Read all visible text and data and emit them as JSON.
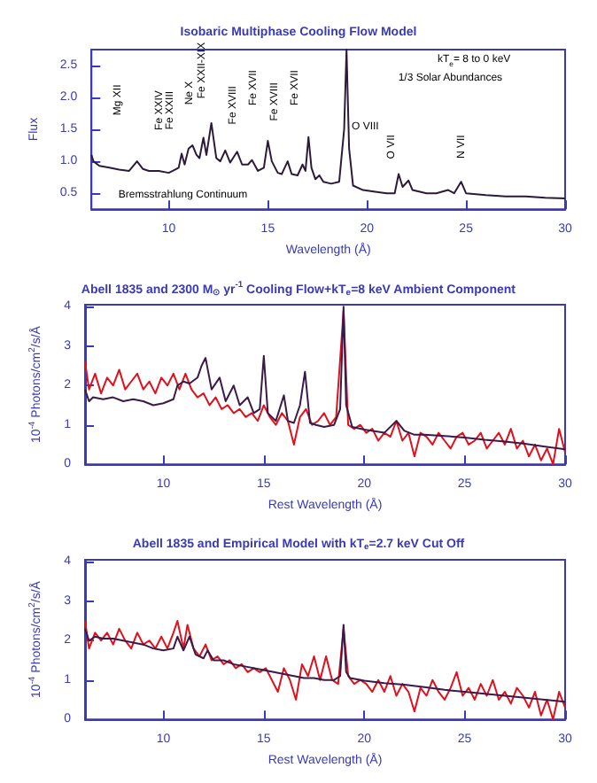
{
  "chart_data": [
    {
      "type": "line",
      "title": "Isobaric Multiphase Cooling Flow Model",
      "xlabel": "Wavelength (Å)",
      "ylabel": "Flux",
      "xlim": [
        6.1,
        30
      ],
      "ylim": [
        0.25,
        2.75
      ],
      "xticks": [
        10,
        15,
        20,
        25,
        30
      ],
      "yticks": [
        {
          "value": 0.5,
          "label": "0.5"
        },
        {
          "value": 1,
          "label": "1.0"
        },
        {
          "value": 1.5,
          "label": "1.5"
        },
        {
          "value": 2,
          "label": "2.0"
        },
        {
          "value": 2.5,
          "label": "2.5"
        }
      ],
      "grid": false,
      "marker": "none",
      "line_style": "solid",
      "annotations": [
        "kT$_{e}$= 8 to 0 keV",
        "1/3 Solar Abundances",
        "Mg XII",
        "Fe XXIV",
        "Fe XXIII",
        "Ne X",
        "Fe XXII-XIX",
        "Fe XVIII",
        "Fe XVII",
        "Fe XVIII",
        "Fe XVII",
        "O VIII",
        "O VII",
        "N VII",
        "Bremsstrahlung Continuum"
      ],
      "series": [
        {
          "color": "#2c1a3a",
          "x": [
            6.1,
            6.2,
            6.5,
            7,
            7.5,
            8,
            8.4,
            8.7,
            9,
            9.5,
            10,
            10.2,
            10.5,
            10.65,
            10.8,
            11,
            11.2,
            11.4,
            11.55,
            11.75,
            11.9,
            12.15,
            12.4,
            12.6,
            12.85,
            13.1,
            13.45,
            13.7,
            14.0,
            14.2,
            14.5,
            14.8,
            15.0,
            15.2,
            15.5,
            15.7,
            16.0,
            16.2,
            16.5,
            16.75,
            16.9,
            17.05,
            17.2,
            17.4,
            17.6,
            17.8,
            18.2,
            18.6,
            18.85,
            18.97,
            19.1,
            19.3,
            19.8,
            20.5,
            21,
            21.4,
            21.6,
            21.8,
            22.1,
            22.3,
            23,
            23.5,
            24.1,
            24.4,
            24.75,
            25,
            26,
            27,
            28,
            29,
            30
          ],
          "values": [
            1.1,
            1.0,
            0.93,
            0.9,
            0.87,
            0.85,
            1.0,
            0.88,
            0.85,
            0.85,
            0.82,
            0.85,
            0.9,
            1.12,
            0.95,
            1.2,
            1.25,
            1.1,
            1.05,
            1.37,
            1.1,
            1.6,
            1.05,
            1.0,
            1.17,
            0.98,
            1.15,
            0.95,
            0.95,
            1.02,
            0.85,
            0.9,
            1.32,
            1.0,
            0.82,
            0.8,
            1.0,
            0.8,
            0.78,
            0.95,
            0.85,
            1.38,
            0.9,
            0.72,
            0.78,
            0.68,
            0.65,
            0.68,
            1.5,
            2.75,
            1.2,
            0.62,
            0.55,
            0.52,
            0.5,
            0.5,
            0.8,
            0.6,
            0.7,
            0.55,
            0.5,
            0.5,
            0.55,
            0.5,
            0.68,
            0.5,
            0.47,
            0.45,
            0.45,
            0.43,
            0.42
          ]
        }
      ]
    },
    {
      "type": "line",
      "title": "Abell 1835 and 2300 M$_{⊙}$ yr$^{-1}$ Cooling Flow+kT$_{e}$=8 keV Ambient Component",
      "xlabel": "Rest Wavelength (Å)",
      "ylabel": "10$^{-4}$ Photons/cm$^{2}$/s/Å",
      "xlim": [
        6.1,
        30
      ],
      "ylim": [
        0,
        4.05
      ],
      "xticks": [
        10,
        15,
        20,
        25,
        30
      ],
      "yticks": [
        0,
        1,
        2,
        3,
        4
      ],
      "grid": false,
      "marker": "none",
      "line_style": "solid",
      "series": [
        {
          "color": "#e0101c",
          "x": [
            6.1,
            6.3,
            6.6,
            6.9,
            7.2,
            7.5,
            7.8,
            8.1,
            8.4,
            8.7,
            9.0,
            9.3,
            9.6,
            9.9,
            10.2,
            10.5,
            10.8,
            11.1,
            11.4,
            11.7,
            12.0,
            12.3,
            12.6,
            12.9,
            13.2,
            13.5,
            13.8,
            14.1,
            14.4,
            14.7,
            15.0,
            15.3,
            15.6,
            15.9,
            16.2,
            16.5,
            16.8,
            17.1,
            17.4,
            17.7,
            18.0,
            18.3,
            18.6,
            18.97,
            19.2,
            19.5,
            19.8,
            20.1,
            20.4,
            20.7,
            21.0,
            21.3,
            21.6,
            21.9,
            22.2,
            22.5,
            22.8,
            23.1,
            23.4,
            23.7,
            24.0,
            24.3,
            24.6,
            24.9,
            25.2,
            25.5,
            25.8,
            26.1,
            26.4,
            26.7,
            27.0,
            27.3,
            27.6,
            27.9,
            28.2,
            28.5,
            28.8,
            29.1,
            29.4,
            29.7,
            30
          ],
          "values": [
            2.6,
            1.9,
            2.3,
            1.8,
            2.2,
            2.0,
            2.4,
            1.9,
            2.1,
            2.3,
            1.9,
            2.1,
            1.8,
            2.2,
            2.0,
            2.3,
            1.9,
            2.3,
            1.9,
            1.7,
            1.8,
            1.5,
            1.7,
            1.4,
            1.5,
            1.3,
            1.4,
            1.2,
            1.3,
            1.1,
            1.5,
            1.2,
            1.0,
            1.3,
            1.1,
            0.5,
            1.2,
            1.4,
            1.0,
            1.1,
            1.3,
            1.0,
            1.2,
            3.9,
            1.0,
            0.9,
            1.0,
            0.8,
            0.9,
            0.6,
            0.8,
            0.7,
            1.1,
            0.6,
            0.8,
            0.2,
            0.8,
            0.7,
            0.5,
            0.8,
            0.6,
            0.4,
            0.7,
            0.8,
            0.5,
            0.6,
            0.8,
            0.4,
            0.6,
            0.8,
            0.5,
            0.9,
            0.4,
            0.6,
            0.2,
            0.5,
            0.1,
            0.4,
            0.0,
            0.9,
            0.3
          ]
        },
        {
          "color": "#3b1a4a",
          "x": [
            6.1,
            6.3,
            6.5,
            7,
            7.5,
            8,
            8.5,
            9,
            9.5,
            10,
            10.5,
            10.7,
            11,
            11.3,
            11.7,
            11.9,
            12.1,
            12.4,
            12.8,
            13.1,
            13.5,
            13.8,
            14.2,
            14.5,
            14.8,
            15.0,
            15.2,
            15.6,
            16.0,
            16.2,
            16.5,
            16.8,
            17.05,
            17.3,
            17.6,
            18,
            18.5,
            18.8,
            18.97,
            19.1,
            19.4,
            20,
            21,
            21.6,
            22,
            22.5,
            23,
            24,
            25,
            26,
            27,
            28,
            29,
            30
          ],
          "values": [
            1.9,
            1.6,
            1.7,
            1.65,
            1.7,
            1.6,
            1.65,
            1.6,
            1.5,
            1.55,
            1.65,
            2.0,
            2.1,
            2.05,
            2.2,
            2.5,
            2.7,
            1.9,
            2.2,
            1.6,
            2.0,
            1.5,
            1.7,
            1.3,
            1.4,
            2.75,
            1.3,
            1.1,
            1.75,
            1.1,
            1.05,
            1.5,
            2.35,
            1.05,
            1.0,
            0.95,
            1.0,
            1.4,
            4.0,
            1.5,
            0.95,
            0.88,
            0.8,
            1.1,
            0.85,
            0.75,
            0.75,
            0.72,
            0.68,
            0.62,
            0.58,
            0.52,
            0.45,
            0.38
          ]
        }
      ]
    },
    {
      "type": "line",
      "title": "Abell 1835 and Empirical Model with kT$_{e}$=2.7 keV Cut Off",
      "xlabel": "Rest Wavelength (Å)",
      "ylabel": "10$^{-4}$ Photons/cm$^{2}$/s/Å",
      "xlim": [
        6.1,
        30
      ],
      "ylim": [
        0,
        4.05
      ],
      "xticks": [
        10,
        15,
        20,
        25,
        30
      ],
      "yticks": [
        0,
        1,
        2,
        3,
        4
      ],
      "grid": false,
      "marker": "none",
      "line_style": "solid",
      "series": [
        {
          "color": "#e0101c",
          "x": [
            6.1,
            6.3,
            6.6,
            6.9,
            7.2,
            7.5,
            7.8,
            8.1,
            8.4,
            8.7,
            9.0,
            9.3,
            9.6,
            9.9,
            10.2,
            10.5,
            10.7,
            11.0,
            11.2,
            11.5,
            11.8,
            12.1,
            12.4,
            12.7,
            13.0,
            13.3,
            13.6,
            13.9,
            14.2,
            14.5,
            14.8,
            15.1,
            15.4,
            15.7,
            16.0,
            16.3,
            16.6,
            16.9,
            17.2,
            17.5,
            17.8,
            18.1,
            18.4,
            18.7,
            18.97,
            19.2,
            19.5,
            19.8,
            20.1,
            20.4,
            20.7,
            21.0,
            21.3,
            21.6,
            21.9,
            22.2,
            22.5,
            22.8,
            23.1,
            23.4,
            23.7,
            24.0,
            24.3,
            24.6,
            24.9,
            25.2,
            25.5,
            25.8,
            26.1,
            26.4,
            26.7,
            27.0,
            27.3,
            27.6,
            27.9,
            28.2,
            28.5,
            28.8,
            29.1,
            29.4,
            29.7,
            30
          ],
          "values": [
            2.5,
            1.8,
            2.2,
            2.0,
            2.2,
            1.9,
            2.3,
            2.0,
            1.8,
            2.2,
            1.9,
            2.0,
            1.8,
            2.1,
            1.8,
            2.2,
            2.5,
            1.8,
            2.4,
            1.8,
            1.6,
            1.9,
            1.5,
            1.6,
            1.4,
            1.5,
            1.3,
            1.4,
            1.2,
            1.3,
            1.2,
            1.3,
            1.0,
            0.7,
            1.3,
            1.0,
            0.5,
            1.4,
            1.1,
            1.6,
            1.0,
            1.6,
            1.0,
            0.9,
            2.3,
            1.1,
            0.9,
            1.0,
            0.9,
            0.7,
            1.0,
            0.7,
            1.1,
            0.6,
            0.9,
            0.7,
            0.2,
            0.8,
            0.6,
            1.0,
            0.7,
            0.5,
            0.8,
            1.2,
            0.6,
            0.8,
            0.5,
            0.9,
            0.6,
            1.0,
            0.5,
            0.7,
            0.4,
            0.8,
            0.6,
            0.3,
            0.7,
            0.1,
            0.5,
            0.0,
            0.7,
            0.3
          ]
        },
        {
          "color": "#3b1a4a",
          "x": [
            6.1,
            6.3,
            6.6,
            7,
            7.5,
            8,
            8.5,
            9,
            9.5,
            10,
            10.5,
            10.7,
            11,
            11.3,
            11.6,
            12,
            12.2,
            12.5,
            13,
            13.5,
            14,
            15,
            15.5,
            16,
            16.5,
            17,
            17.5,
            18,
            18.5,
            18.8,
            18.97,
            19.1,
            19.3,
            20,
            21,
            22,
            23,
            24,
            25,
            26,
            27,
            28,
            29,
            30
          ],
          "values": [
            2.3,
            2.0,
            2.1,
            2.05,
            2.05,
            2.0,
            1.95,
            1.9,
            1.8,
            1.75,
            1.8,
            2.1,
            1.75,
            2.1,
            1.65,
            1.55,
            1.75,
            1.5,
            1.5,
            1.4,
            1.35,
            1.25,
            1.2,
            1.15,
            1.1,
            1.05,
            1.05,
            1.0,
            1.0,
            1.1,
            2.4,
            1.2,
            1.05,
            0.98,
            0.92,
            0.88,
            0.82,
            0.75,
            0.7,
            0.65,
            0.6,
            0.55,
            0.5,
            0.45
          ]
        }
      ]
    }
  ]
}
